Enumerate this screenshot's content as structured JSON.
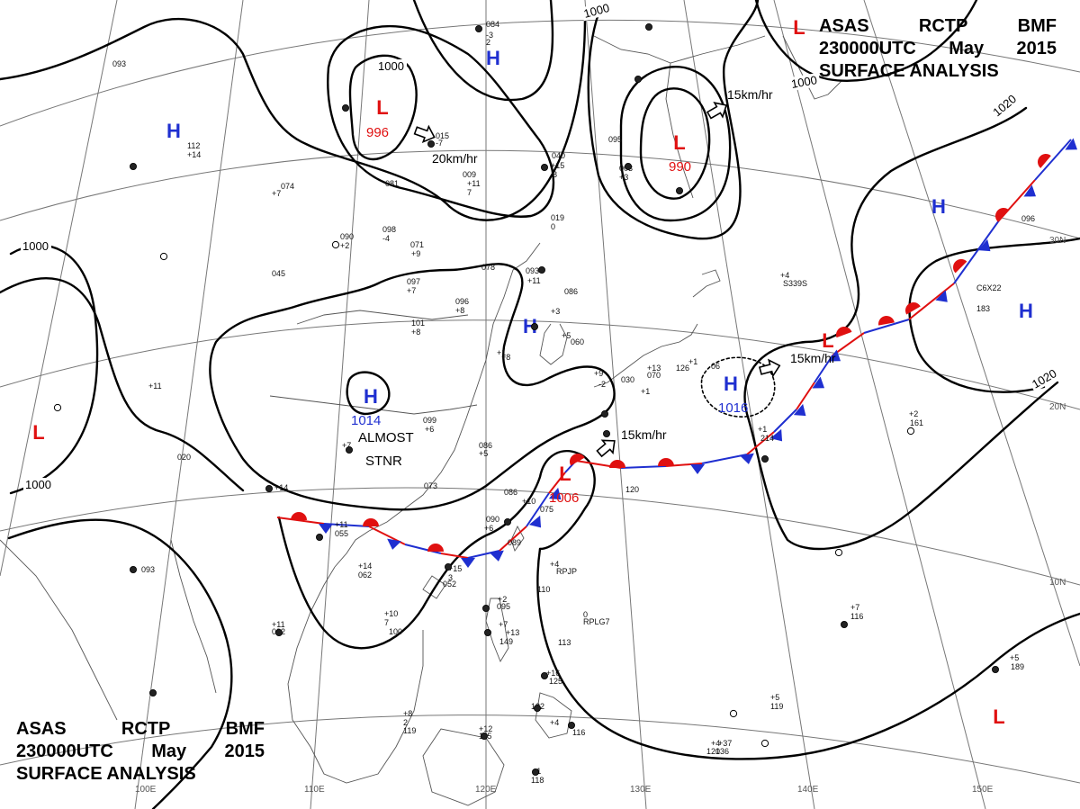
{
  "header": {
    "agency_parts": [
      "ASAS",
      "RCTP",
      "BMF"
    ],
    "time_parts": [
      "230000UTC",
      "May",
      "2015"
    ],
    "title": "SURFACE ANALYSIS"
  },
  "grid": {
    "longitude_labels": [
      "100E",
      "110E",
      "120E",
      "130E",
      "140E",
      "150E"
    ],
    "latitude_labels": [
      "30N",
      "20N",
      "10N"
    ]
  },
  "centers": [
    {
      "kind": "H",
      "color": "#1f2fd0"
    },
    {
      "kind": "H",
      "color": "#1f2fd0"
    },
    {
      "kind": "L",
      "value": "996",
      "color": "#e01010"
    },
    {
      "kind": "L",
      "value": "990",
      "color": "#e01010"
    },
    {
      "kind": "L",
      "color": "#e01010"
    },
    {
      "kind": "H",
      "color": "#1f2fd0"
    },
    {
      "kind": "H",
      "color": "#1f2fd0"
    },
    {
      "kind": "H",
      "value": "1014",
      "color": "#1f2fd0"
    },
    {
      "kind": "H",
      "color": "#1f2fd0"
    },
    {
      "kind": "H",
      "value": "1016",
      "color": "#1f2fd0"
    },
    {
      "kind": "L",
      "value": "1006",
      "color": "#e01010"
    },
    {
      "kind": "L",
      "color": "#e01010"
    },
    {
      "kind": "L",
      "color": "#e01010"
    },
    {
      "kind": "L",
      "color": "#e01010"
    },
    {
      "kind": "H",
      "color": "#1f2fd0"
    }
  ],
  "isobar_labels": [
    "1000",
    "1000",
    "1000",
    "1000",
    "1000",
    "1020",
    "1020"
  ],
  "motions": [
    {
      "text": "20km/hr"
    },
    {
      "text": "15km/hr"
    },
    {
      "text": "15km/hr"
    },
    {
      "text": "15km/hr"
    }
  ],
  "annotations": [
    "ALMOST",
    "STNR"
  ],
  "stations": [
    {
      "text": "084"
    },
    {
      "text": "-3"
    },
    {
      "text": "2"
    },
    {
      "text": "081"
    },
    {
      "text": "095"
    },
    {
      "text": "040"
    },
    {
      "text": "+15"
    },
    {
      "text": "8"
    },
    {
      "text": "003"
    },
    {
      "text": "+3"
    },
    {
      "text": "015"
    },
    {
      "text": "-7"
    },
    {
      "text": "009"
    },
    {
      "text": "+11"
    },
    {
      "text": "7"
    },
    {
      "text": "019"
    },
    {
      "text": "0"
    },
    {
      "text": "093"
    },
    {
      "text": "112"
    },
    {
      "text": "+14"
    },
    {
      "text": "098"
    },
    {
      "text": "-4"
    },
    {
      "text": "090"
    },
    {
      "text": "+2"
    },
    {
      "text": "071"
    },
    {
      "text": "+9"
    },
    {
      "text": "074"
    },
    {
      "text": "+7"
    },
    {
      "text": "045"
    },
    {
      "text": "078"
    },
    {
      "text": "093"
    },
    {
      "text": "+11"
    },
    {
      "text": "097"
    },
    {
      "text": "+7"
    },
    {
      "text": "096"
    },
    {
      "text": "+8"
    },
    {
      "text": "101"
    },
    {
      "text": "+8"
    },
    {
      "text": "086"
    },
    {
      "text": "+3"
    },
    {
      "text": "+5"
    },
    {
      "text": "+1"
    },
    {
      "text": "+8"
    },
    {
      "text": "+11"
    },
    {
      "text": "099"
    },
    {
      "text": "+6"
    },
    {
      "text": "086"
    },
    {
      "text": "+5"
    },
    {
      "text": "+7"
    },
    {
      "text": "020"
    },
    {
      "text": "+14"
    },
    {
      "text": "073"
    },
    {
      "text": "086"
    },
    {
      "text": "+10"
    },
    {
      "text": "090"
    },
    {
      "text": "+6"
    },
    {
      "text": "089"
    },
    {
      "text": "075"
    },
    {
      "text": "+15"
    },
    {
      "text": "3"
    },
    {
      "text": "052"
    },
    {
      "text": "+11"
    },
    {
      "text": "055"
    },
    {
      "text": "+14"
    },
    {
      "text": "062"
    },
    {
      "text": "093"
    },
    {
      "text": "+11"
    },
    {
      "text": "082"
    },
    {
      "text": "+10"
    },
    {
      "text": "7"
    },
    {
      "text": "100"
    },
    {
      "text": "+2"
    },
    {
      "text": "095"
    },
    {
      "text": "+7"
    },
    {
      "text": "+13"
    },
    {
      "text": "149"
    },
    {
      "text": "+4"
    },
    {
      "text": "RPJP"
    },
    {
      "text": "110"
    },
    {
      "text": "0"
    },
    {
      "text": "RPLG7"
    },
    {
      "text": "113"
    },
    {
      "text": "+16"
    },
    {
      "text": "125"
    },
    {
      "text": "122"
    },
    {
      "text": "+4"
    },
    {
      "text": "116"
    },
    {
      "text": "+12"
    },
    {
      "text": "115"
    },
    {
      "text": "+8"
    },
    {
      "text": "2"
    },
    {
      "text": "119"
    },
    {
      "text": "+1"
    },
    {
      "text": "118"
    },
    {
      "text": "+4"
    },
    {
      "text": "120"
    },
    {
      "text": "+5"
    },
    {
      "text": "119"
    },
    {
      "text": "+37"
    },
    {
      "text": "136"
    },
    {
      "text": "+7"
    },
    {
      "text": "116"
    },
    {
      "text": "+5"
    },
    {
      "text": "189"
    },
    {
      "text": "+2"
    },
    {
      "text": "161"
    },
    {
      "text": "+1"
    },
    {
      "text": "214"
    },
    {
      "text": "C6X22"
    },
    {
      "text": "183"
    },
    {
      "text": "+4"
    },
    {
      "text": "S339S"
    },
    {
      "text": "096"
    },
    {
      "text": "+1"
    },
    {
      "text": "126"
    },
    {
      "text": "+13"
    },
    {
      "text": "070"
    },
    {
      "text": "120"
    },
    {
      "text": "+9"
    },
    {
      "text": "-2"
    },
    {
      "text": "+1"
    },
    {
      "text": "060"
    },
    {
      "text": "06"
    },
    {
      "text": "030"
    }
  ]
}
